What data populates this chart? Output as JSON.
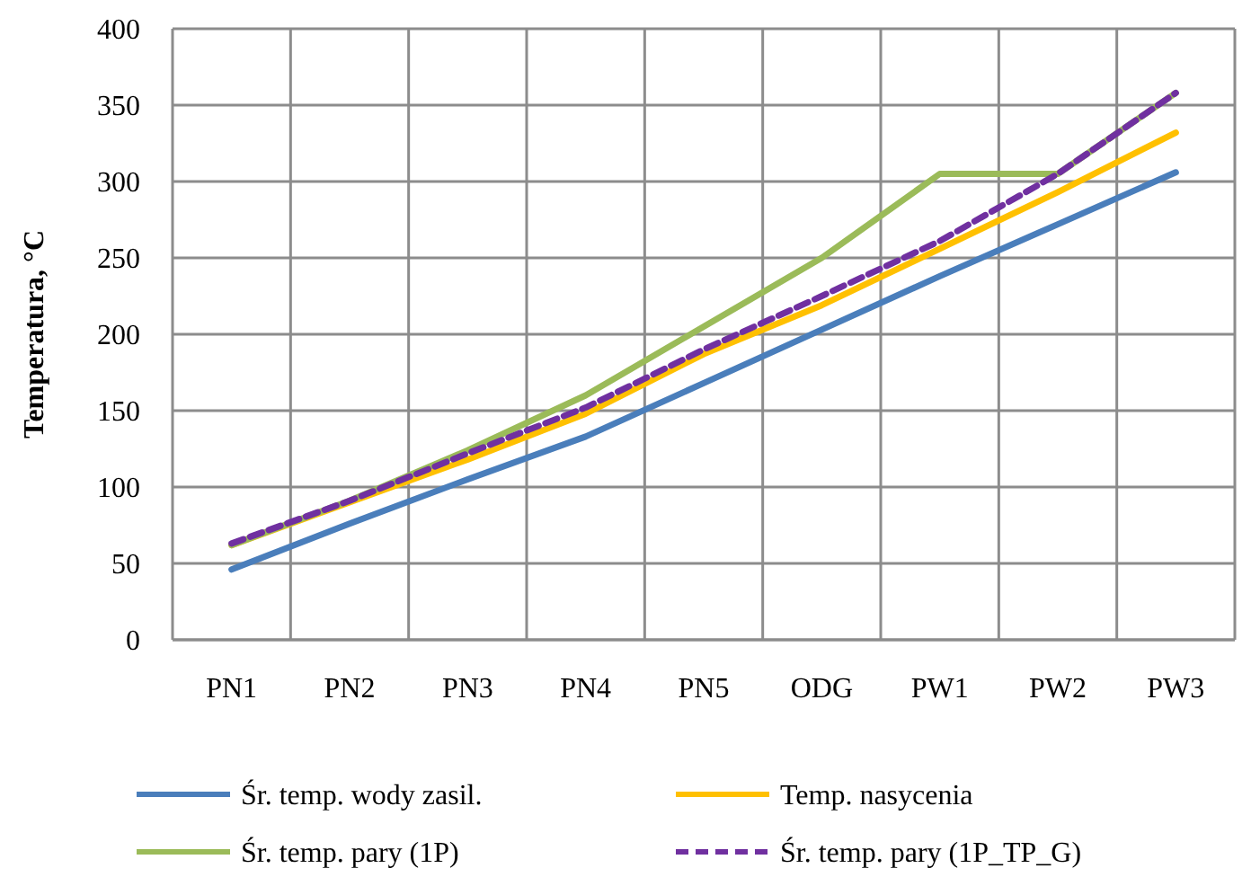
{
  "chart_data": {
    "type": "line",
    "ylabel": "Temperatura, °C",
    "categories": [
      "PN1",
      "PN2",
      "PN3",
      "PN4",
      "PN5",
      "ODG",
      "PW1",
      "PW2",
      "PW3"
    ],
    "series": [
      {
        "name": "Śr. temp. wody zasil.",
        "color": "#4a7ebb",
        "values": [
          46,
          76,
          105,
          133,
          168,
          203,
          238,
          272,
          306
        ]
      },
      {
        "name": "Temp. nasycenia",
        "color": "#ffc000",
        "values": [
          62,
          90,
          118,
          148,
          187,
          219,
          256,
          293,
          332
        ]
      },
      {
        "name": "Śr. temp. pary (1P)",
        "color": "#9bbb59",
        "values": [
          62,
          91,
          124,
          160,
          205,
          250,
          305,
          305,
          358
        ]
      },
      {
        "name": "Śr. temp. pary (1P_TP_G)",
        "color": "#7030a0",
        "values": [
          63,
          91,
          122,
          152,
          190,
          225,
          261,
          305,
          358
        ],
        "line_style": "dashed"
      }
    ],
    "ylim": [
      0,
      400
    ],
    "yticks": [
      0,
      50,
      100,
      150,
      200,
      250,
      300,
      350,
      400
    ],
    "grid": true,
    "legend": "bottom",
    "marker": "none"
  }
}
